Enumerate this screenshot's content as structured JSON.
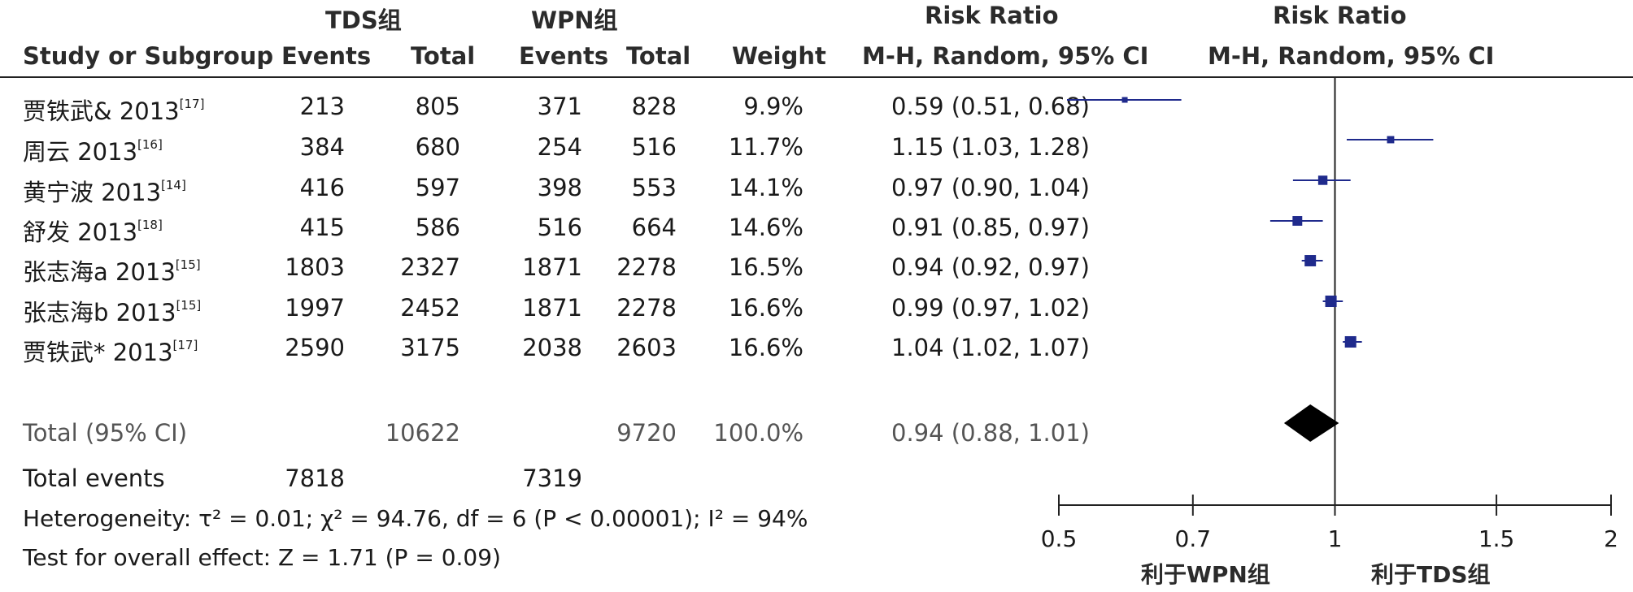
{
  "headers": {
    "group1": "TDS组",
    "group2": "WPN组",
    "rr_title": "Risk Ratio",
    "plot_title": "Risk Ratio",
    "study": "Study or Subgroup",
    "events1": "Events",
    "total1": "Total",
    "events2": "Events",
    "total2": "Total",
    "weight": "Weight",
    "method": "M-H, Random, 95% CI",
    "plot_method": "M-H, Random, 95% CI"
  },
  "studies": [
    {
      "name": "贾铁武& 2013",
      "ref": "[17]",
      "e1": "213",
      "t1": "805",
      "e2": "371",
      "t2": "828",
      "weight": "9.9%",
      "rr_text": "0.59 (0.51, 0.68)"
    },
    {
      "name": "周云 2013",
      "ref": "[16]",
      "e1": "384",
      "t1": "680",
      "e2": "254",
      "t2": "516",
      "weight": "11.7%",
      "rr_text": "1.15 (1.03, 1.28)"
    },
    {
      "name": "黄宁波 2013",
      "ref": "[14]",
      "e1": "416",
      "t1": "597",
      "e2": "398",
      "t2": "553",
      "weight": "14.1%",
      "rr_text": "0.97 (0.90, 1.04)"
    },
    {
      "name": "舒发 2013",
      "ref": "[18]",
      "e1": "415",
      "t1": "586",
      "e2": "516",
      "t2": "664",
      "weight": "14.6%",
      "rr_text": "0.91 (0.85, 0.97)"
    },
    {
      "name": "张志海a 2013",
      "ref": "[15]",
      "e1": "1803",
      "t1": "2327",
      "e2": "1871",
      "t2": "2278",
      "weight": "16.5%",
      "rr_text": "0.94 (0.92, 0.97)"
    },
    {
      "name": "张志海b 2013",
      "ref": "[15]",
      "e1": "1997",
      "t1": "2452",
      "e2": "1871",
      "t2": "2278",
      "weight": "16.6%",
      "rr_text": "0.99 (0.97, 1.02)"
    },
    {
      "name": "贾铁武* 2013",
      "ref": "[17]",
      "e1": "2590",
      "t1": "3175",
      "e2": "2038",
      "t2": "2603",
      "weight": "16.6%",
      "rr_text": "1.04 (1.02, 1.07)"
    }
  ],
  "total": {
    "label": "Total (95% CI)",
    "t1": "10622",
    "t2": "9720",
    "weight": "100.0%",
    "rr_text": "0.94 (0.88, 1.01)"
  },
  "total_events": {
    "label": "Total events",
    "e1": "7818",
    "e2": "7319"
  },
  "heterogeneity": "Heterogeneity: τ² = 0.01; χ² = 94.76, df = 6 (P < 0.00001); I² = 94%",
  "overall_effect": "Test for overall effect: Z = 1.71 (P = 0.09)",
  "axis": {
    "favours_left": "利于WPN组",
    "favours_right": "利于TDS组"
  },
  "colors": {
    "marker": "#1f2a8c",
    "diamond": "#000000",
    "line": "#1f2a8c"
  },
  "chart_data": {
    "type": "scatter",
    "scale": "log",
    "xlim": [
      0.5,
      2
    ],
    "ticks": [
      0.5,
      0.7,
      1,
      1.5,
      2
    ],
    "tick_labels": [
      "0.5",
      "0.7",
      "1",
      "1.5",
      "2"
    ],
    "reference_line": 1,
    "series": [
      {
        "points": [
          {
            "rr": 0.59,
            "lo": 0.51,
            "hi": 0.68,
            "weight": 9.9
          },
          {
            "rr": 1.15,
            "lo": 1.03,
            "hi": 1.28,
            "weight": 11.7
          },
          {
            "rr": 0.97,
            "lo": 0.9,
            "hi": 1.04,
            "weight": 14.1
          },
          {
            "rr": 0.91,
            "lo": 0.85,
            "hi": 0.97,
            "weight": 14.6
          },
          {
            "rr": 0.94,
            "lo": 0.92,
            "hi": 0.97,
            "weight": 16.5
          },
          {
            "rr": 0.99,
            "lo": 0.97,
            "hi": 1.02,
            "weight": 16.6
          },
          {
            "rr": 1.04,
            "lo": 1.02,
            "hi": 1.07,
            "weight": 16.6
          }
        ]
      }
    ],
    "pooled": {
      "rr": 0.94,
      "lo": 0.88,
      "hi": 1.01
    }
  }
}
